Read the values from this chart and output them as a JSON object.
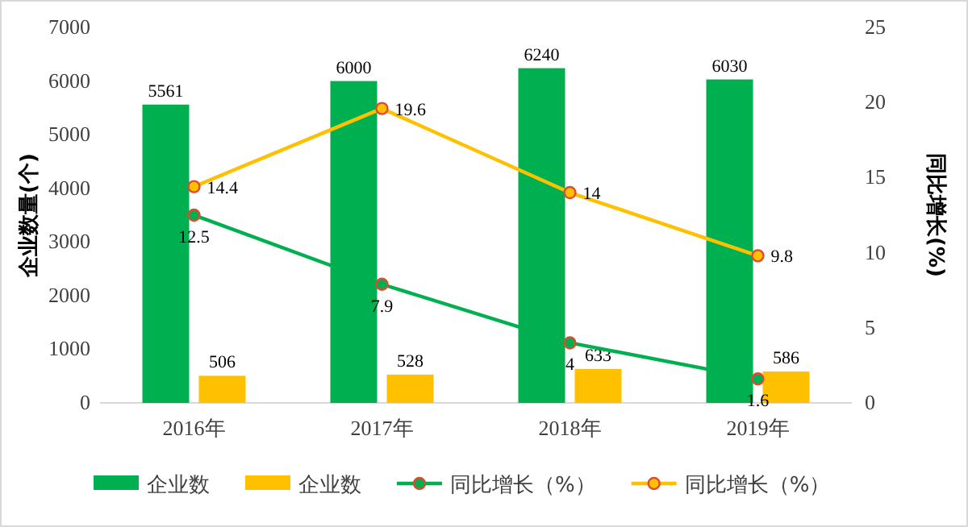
{
  "chart_data": {
    "type": "bar",
    "categories": [
      "2016年",
      "2017年",
      "2018年",
      "2019年"
    ],
    "ylabel": "企业数量(个)",
    "y2label": "同比增长(%)",
    "ylim": [
      0,
      7000
    ],
    "yticks": [
      0,
      1000,
      2000,
      3000,
      4000,
      5000,
      6000,
      7000
    ],
    "y2lim": [
      0,
      25
    ],
    "y2ticks": [
      0,
      5,
      10,
      15,
      20,
      25
    ],
    "series": [
      {
        "name": "企业数",
        "color": "#00b050",
        "values": [
          5561,
          6000,
          6240,
          6030
        ]
      },
      {
        "name": "企业数",
        "color": "#ffc000",
        "values": [
          506,
          528,
          633,
          586
        ]
      },
      {
        "name": "同比增长（%）",
        "type": "line",
        "axis": "y2",
        "color": "#00b050",
        "values": [
          12.5,
          7.9,
          4,
          1.6
        ]
      },
      {
        "name": "同比增长（%）",
        "type": "line",
        "axis": "y2",
        "color": "#ffc000",
        "values": [
          14.4,
          19.6,
          14,
          9.8
        ]
      }
    ],
    "marker": "circle",
    "data_labels": true,
    "legend": "bottom",
    "grid": false
  }
}
